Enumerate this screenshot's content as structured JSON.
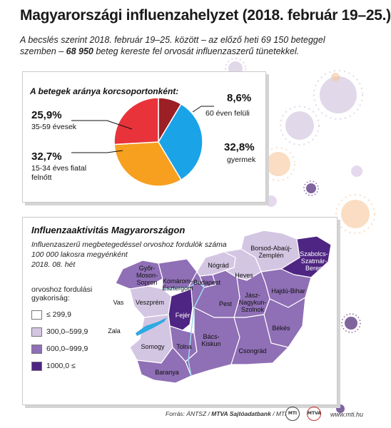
{
  "title": "Magyarországi influenzahelyzet (2018. február 19–25.)",
  "lead_part1": "A becslés szerint 2018. február 19–25. között – az előző heti 69 150 beteggel szemben –",
  "lead_bold": "68 950",
  "lead_part2": " beteg kereste fel orvosát influenzaszerű tünetekkel.",
  "colors": {
    "orange": "#f7a01f",
    "red": "#e8333b",
    "darkred": "#9b1f24",
    "blue": "#1ba3e8",
    "level1": "#ffffff",
    "level2": "#d3c6e3",
    "level3": "#8f6fb5",
    "level4": "#4e2582"
  },
  "chart_data": [
    {
      "type": "pie",
      "title": "A betegek aránya korcsoportonként:",
      "slices": [
        {
          "label": "60 éven felüli",
          "value": 8.6,
          "value_label": "8,6%",
          "color": "#9b1f24"
        },
        {
          "label": "gyermek",
          "value": 32.8,
          "value_label": "32,8%",
          "color": "#1ba3e8"
        },
        {
          "label": "15-34 éves fiatal felnőtt",
          "value": 32.7,
          "value_label": "32,7%",
          "color": "#f7a01f"
        },
        {
          "label": "35-59 évesek",
          "value": 25.9,
          "value_label": "25,9%",
          "color": "#e8333b"
        }
      ]
    },
    {
      "type": "heatmap",
      "title": "Influenzaaktivitás Magyarországon",
      "subtitle_lines": [
        "Influenzaszerű megbetegedéssel orvoshoz fordulók száma",
        "100 000 lakosra megyénként",
        "2018. 08. hét"
      ],
      "legend_title_lines": [
        "orvoshoz fordulási",
        "gyakoriság:"
      ],
      "legend": [
        {
          "label": "≤ 299,9",
          "color": "#ffffff"
        },
        {
          "label": "300,0–599,9",
          "color": "#d3c6e3"
        },
        {
          "label": "600,0–999,9",
          "color": "#8f6fb5"
        },
        {
          "label": "1000,0 ≤",
          "color": "#4e2582"
        }
      ],
      "regions": [
        {
          "name": "Győr-Moson-Sopron",
          "lines": [
            "Győr-",
            "Moson-",
            "Sopron"
          ],
          "level": 3
        },
        {
          "name": "Komárom-Esztergom",
          "lines": [
            "Komárom-",
            "Esztergom"
          ],
          "level": 3
        },
        {
          "name": "Vas",
          "lines": [
            "Vas"
          ],
          "level": 1
        },
        {
          "name": "Veszprém",
          "lines": [
            "Veszprém"
          ],
          "level": 2
        },
        {
          "name": "Fejér",
          "lines": [
            "Fejér"
          ],
          "level": 4
        },
        {
          "name": "Zala",
          "lines": [
            "Zala"
          ],
          "level": 1
        },
        {
          "name": "Somogy",
          "lines": [
            "Somogy"
          ],
          "level": 2
        },
        {
          "name": "Tolna",
          "lines": [
            "Tolna"
          ],
          "level": 3
        },
        {
          "name": "Baranya",
          "lines": [
            "Baranya"
          ],
          "level": 3
        },
        {
          "name": "Budapest",
          "lines": [
            "Budapest"
          ],
          "level": 3
        },
        {
          "name": "Pest",
          "lines": [
            "Pest"
          ],
          "level": 3
        },
        {
          "name": "Nógrád",
          "lines": [
            "Nógrád"
          ],
          "level": 2
        },
        {
          "name": "Heves",
          "lines": [
            "Heves"
          ],
          "level": 2
        },
        {
          "name": "Borsod-Abaúj-Zemplén",
          "lines": [
            "Borsod-Abaúj-",
            "Zemplén"
          ],
          "level": 2
        },
        {
          "name": "Szabolcs-Szatmár-Bereg",
          "lines": [
            "Szabolcs-",
            "Szatmár-",
            "Bereg"
          ],
          "level": 4
        },
        {
          "name": "Hajdú-Bihar",
          "lines": [
            "Hajdú-Bihar"
          ],
          "level": 3
        },
        {
          "name": "Jász-Nagykun-Szolnok",
          "lines": [
            "Jász-",
            "Nagykun-",
            "Szolnok"
          ],
          "level": 3
        },
        {
          "name": "Bács-Kiskun",
          "lines": [
            "Bács-",
            "Kiskun"
          ],
          "level": 3
        },
        {
          "name": "Békés",
          "lines": [
            "Békés"
          ],
          "level": 3
        },
        {
          "name": "Csongrád",
          "lines": [
            "Csongrád"
          ],
          "level": 3
        }
      ]
    }
  ],
  "footer": {
    "source_prefix": "Forrás: ÁNTSZ / ",
    "source_bold": "MTVA Sajtóadatbank",
    "source_suffix": " / MTI",
    "url": "www.mti.hu",
    "logo1": "MTI",
    "logo2": "MTVA"
  }
}
